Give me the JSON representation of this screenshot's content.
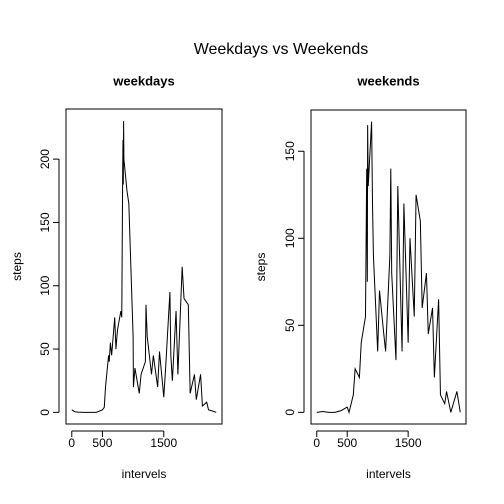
{
  "title": "Weekdays vs Weekends",
  "chart_data": [
    {
      "type": "line",
      "title": "weekdays",
      "xlabel": "intervels",
      "ylabel": "steps",
      "color": "#000000",
      "x": [
        0,
        50,
        100,
        200,
        300,
        400,
        500,
        530,
        550,
        600,
        610,
        630,
        650,
        700,
        720,
        745,
        800,
        815,
        830,
        835,
        840,
        845,
        850,
        900,
        930,
        1000,
        1005,
        1030,
        1100,
        1130,
        1200,
        1210,
        1230,
        1300,
        1330,
        1400,
        1430,
        1500,
        1530,
        1600,
        1615,
        1640,
        1700,
        1730,
        1800,
        1830,
        1900,
        1930,
        2000,
        2030,
        2100,
        2130,
        2200,
        2230,
        2300,
        2355
      ],
      "values": [
        2,
        0.5,
        0.2,
        0,
        0,
        0,
        2,
        4,
        20,
        45,
        40,
        55,
        45,
        75,
        50,
        65,
        80,
        75,
        190,
        215,
        180,
        230,
        200,
        175,
        165,
        60,
        20,
        35,
        15,
        30,
        40,
        85,
        60,
        30,
        45,
        20,
        48,
        12,
        35,
        95,
        45,
        25,
        80,
        30,
        115,
        90,
        85,
        15,
        30,
        10,
        30,
        5,
        8,
        2,
        1,
        0
      ],
      "xlim": [
        -94.2,
        2449.2
      ],
      "ylim": [
        -9.2,
        239.6
      ],
      "xticks": [
        0,
        500,
        1500
      ],
      "yticks": [
        0,
        50,
        100,
        150,
        200
      ]
    },
    {
      "type": "line",
      "title": "weekends",
      "xlabel": "intervels",
      "ylabel": "steps",
      "color": "#000000",
      "x": [
        0,
        100,
        200,
        300,
        400,
        500,
        530,
        600,
        630,
        700,
        730,
        800,
        820,
        830,
        835,
        845,
        900,
        915,
        930,
        1000,
        1030,
        1100,
        1130,
        1200,
        1215,
        1230,
        1300,
        1330,
        1400,
        1430,
        1500,
        1530,
        1600,
        1630,
        1700,
        1730,
        1800,
        1830,
        1900,
        1930,
        2000,
        2030,
        2100,
        2130,
        2200,
        2300,
        2355
      ],
      "values": [
        0,
        0.5,
        0,
        0,
        1,
        3,
        0,
        10,
        25,
        20,
        40,
        55,
        140,
        75,
        165,
        130,
        167,
        120,
        90,
        35,
        70,
        45,
        35,
        90,
        140,
        80,
        30,
        130,
        35,
        120,
        40,
        100,
        55,
        125,
        110,
        60,
        80,
        45,
        60,
        20,
        65,
        10,
        5,
        12,
        0,
        12,
        0
      ],
      "xlim": [
        -94.2,
        2449.2
      ],
      "ylim": [
        -6.7,
        173.7
      ],
      "xticks": [
        0,
        500,
        1500
      ],
      "yticks": [
        0,
        50,
        100,
        150
      ]
    }
  ]
}
